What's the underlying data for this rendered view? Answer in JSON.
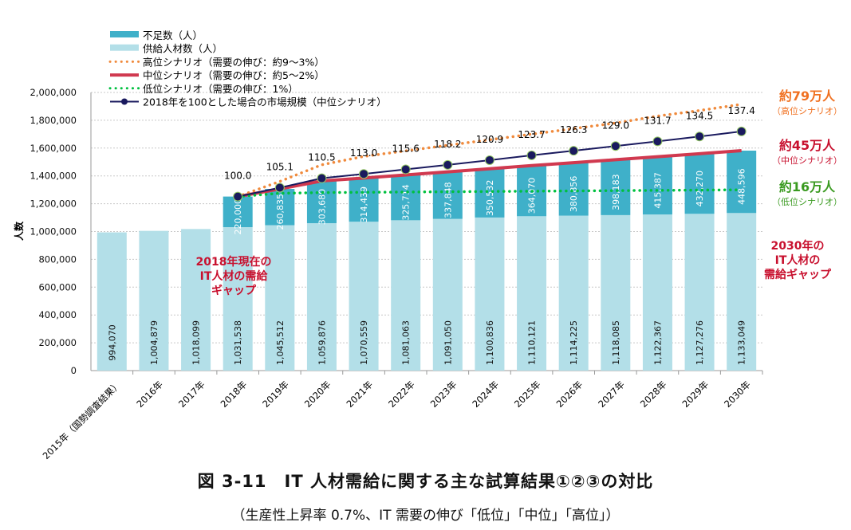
{
  "chart_data": {
    "type": "bar",
    "ylabel": "人数",
    "ylim": [
      0,
      2000000
    ],
    "yticks": [
      "0",
      "200,000",
      "400,000",
      "600,000",
      "800,000",
      "1,000,000",
      "1,200,000",
      "1,400,000",
      "1,600,000",
      "1,800,000",
      "2,000,000"
    ],
    "categories": [
      "2015年（国勢調査結果）",
      "2016年",
      "2017年",
      "2018年",
      "2019年",
      "2020年",
      "2021年",
      "2022年",
      "2023年",
      "2024年",
      "2025年",
      "2026年",
      "2027年",
      "2028年",
      "2029年",
      "2030年"
    ],
    "series": [
      {
        "name": "供給人材数（人）",
        "type": "bar",
        "color": "#b3dfe8",
        "values": [
          994070,
          1004879,
          1018099,
          1031538,
          1045512,
          1059876,
          1070559,
          1081063,
          1091050,
          1100836,
          1110121,
          1114225,
          1118085,
          1122367,
          1127276,
          1133049
        ]
      },
      {
        "name": "不足数（人）",
        "type": "bar",
        "color": "#3fb0c9",
        "values": [
          null,
          null,
          null,
          220000,
          260835,
          303680,
          314439,
          325714,
          337848,
          350532,
          364070,
          380856,
          398183,
          415387,
          432270,
          448596
        ]
      },
      {
        "name": "高位シナリオ（需要の伸び：約9～3%）",
        "type": "line",
        "style": "dotted",
        "color": "#f08a3c",
        "values": [
          null,
          null,
          null,
          1251538,
          1360000,
          1480000,
          1540000,
          1580000,
          1620000,
          1660000,
          1700000,
          1740000,
          1780000,
          1830000,
          1870000,
          1915000
        ]
      },
      {
        "name": "中位シナリオ（需要の伸び：約5～2%）",
        "type": "line",
        "style": "solid",
        "color": "#d0394f",
        "values": [
          null,
          null,
          null,
          1251538,
          1306347,
          1363556,
          1384998,
          1406777,
          1428898,
          1451368,
          1474191,
          1495081,
          1516268,
          1537754,
          1559546,
          1581645
        ]
      },
      {
        "name": "低位シナリオ（需要の伸び：1%）",
        "type": "line",
        "style": "dotted",
        "color": "#00c040",
        "values": [
          null,
          null,
          null,
          1251538,
          1275000,
          1280000,
          1282000,
          1284000,
          1286000,
          1288000,
          1290000,
          1292000,
          1294000,
          1296000,
          1298000,
          1300000
        ]
      },
      {
        "name": "2018年を100とした場合の市場規模（中位シナリオ）",
        "type": "line-marker",
        "color": "#1a1a5e",
        "values": [
          null,
          null,
          null,
          100.0,
          105.1,
          110.5,
          113.0,
          115.6,
          118.2,
          120.9,
          123.7,
          126.3,
          129.0,
          131.7,
          134.5,
          137.4
        ]
      }
    ],
    "annotations": {
      "high": {
        "main": "約79万人",
        "sub": "（高位シナリオ）",
        "color": "#f07020"
      },
      "mid": {
        "main": "約45万人",
        "sub": "（中位シナリオ）",
        "color": "#c8102e"
      },
      "low": {
        "main": "約16万人",
        "sub": "（低位シナリオ）",
        "color": "#3a9a20"
      },
      "gap2018": [
        "2018年現在の",
        "IT人材の需給",
        "ギャップ"
      ],
      "gap2030": [
        "2030年の",
        "IT人材の",
        "需給ギャップ"
      ]
    }
  },
  "caption": {
    "title": "図 3-11　IT 人材需給に関する主な試算結果①②③の対比",
    "subtitle": "（生産性上昇率 0.7%、IT 需要の伸び「低位」「中位」「高位」）"
  }
}
